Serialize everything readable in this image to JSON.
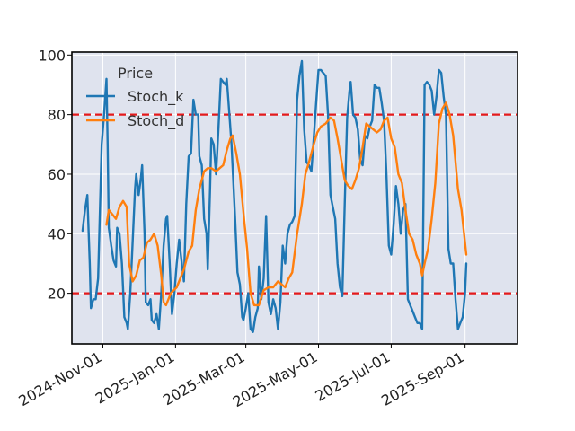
{
  "chart_data": {
    "type": "line",
    "title": "",
    "xlabel": "",
    "ylabel": "",
    "ylim": [
      3,
      101
    ],
    "xlim": [
      "2024-10-06",
      "2025-10-15"
    ],
    "grid": true,
    "legend": {
      "title": "Price",
      "placement": "top-left"
    },
    "y_ticks": [
      20,
      40,
      60,
      80,
      100
    ],
    "x_ticks": [
      {
        "date": "2024-11-01",
        "label": "2024-Nov-01"
      },
      {
        "date": "2025-01-01",
        "label": "2025-Jan-01"
      },
      {
        "date": "2025-03-01",
        "label": "2025-Mar-01"
      },
      {
        "date": "2025-05-01",
        "label": "2025-May-01"
      },
      {
        "date": "2025-07-01",
        "label": "2025-Jul-01"
      },
      {
        "date": "2025-09-01",
        "label": "2025-Sep-01"
      }
    ],
    "reference_lines": [
      {
        "y": 80,
        "color": "#e41a1c",
        "style": "dashed"
      },
      {
        "y": 20,
        "color": "#e41a1c",
        "style": "dashed"
      }
    ],
    "series": [
      {
        "name": "Stoch_k",
        "color": "#1f77b4",
        "points": [
          [
            "2024-10-15",
            41
          ],
          [
            "2024-10-17",
            48
          ],
          [
            "2024-10-19",
            53
          ],
          [
            "2024-10-21",
            30
          ],
          [
            "2024-10-22",
            15
          ],
          [
            "2024-10-24",
            18
          ],
          [
            "2024-10-26",
            18
          ],
          [
            "2024-10-28",
            25
          ],
          [
            "2024-10-31",
            70
          ],
          [
            "2024-11-02",
            80
          ],
          [
            "2024-11-04",
            92
          ],
          [
            "2024-11-05",
            70
          ],
          [
            "2024-11-06",
            42
          ],
          [
            "2024-11-08",
            36
          ],
          [
            "2024-11-10",
            31
          ],
          [
            "2024-11-12",
            29
          ],
          [
            "2024-11-13",
            42
          ],
          [
            "2024-11-15",
            40
          ],
          [
            "2024-11-17",
            30
          ],
          [
            "2024-11-19",
            12
          ],
          [
            "2024-11-21",
            10
          ],
          [
            "2024-11-22",
            8
          ],
          [
            "2024-11-24",
            20
          ],
          [
            "2024-11-26",
            37
          ],
          [
            "2024-11-28",
            55
          ],
          [
            "2024-11-29",
            60
          ],
          [
            "2024-12-01",
            53
          ],
          [
            "2024-12-03",
            59
          ],
          [
            "2024-12-04",
            63
          ],
          [
            "2024-12-06",
            40
          ],
          [
            "2024-12-07",
            17
          ],
          [
            "2024-12-09",
            16
          ],
          [
            "2024-12-11",
            18
          ],
          [
            "2024-12-12",
            11
          ],
          [
            "2024-12-14",
            10
          ],
          [
            "2024-12-16",
            13
          ],
          [
            "2024-12-18",
            8
          ],
          [
            "2024-12-20",
            20
          ],
          [
            "2024-12-22",
            36
          ],
          [
            "2024-12-24",
            45
          ],
          [
            "2024-12-25",
            46
          ],
          [
            "2024-12-27",
            31
          ],
          [
            "2024-12-29",
            13
          ],
          [
            "2024-12-31",
            20
          ],
          [
            "2025-01-02",
            30
          ],
          [
            "2025-01-04",
            38
          ],
          [
            "2025-01-06",
            31
          ],
          [
            "2025-01-08",
            24
          ],
          [
            "2025-01-10",
            50
          ],
          [
            "2025-01-12",
            66
          ],
          [
            "2025-01-14",
            67
          ],
          [
            "2025-01-16",
            85
          ],
          [
            "2025-01-18",
            80
          ],
          [
            "2025-01-20",
            80
          ],
          [
            "2025-01-21",
            66
          ],
          [
            "2025-01-23",
            63
          ],
          [
            "2025-01-25",
            45
          ],
          [
            "2025-01-27",
            40
          ],
          [
            "2025-01-28",
            28
          ],
          [
            "2025-01-30",
            55
          ],
          [
            "2025-01-31",
            72
          ],
          [
            "2025-02-02",
            70
          ],
          [
            "2025-02-04",
            60
          ],
          [
            "2025-02-06",
            75
          ],
          [
            "2025-02-08",
            92
          ],
          [
            "2025-02-10",
            91
          ],
          [
            "2025-02-12",
            90
          ],
          [
            "2025-02-13",
            92
          ],
          [
            "2025-02-15",
            81
          ],
          [
            "2025-02-17",
            70
          ],
          [
            "2025-02-20",
            45
          ],
          [
            "2025-02-22",
            27
          ],
          [
            "2025-02-24",
            23
          ],
          [
            "2025-02-26",
            12
          ],
          [
            "2025-02-27",
            11
          ],
          [
            "2025-03-01",
            15
          ],
          [
            "2025-03-03",
            20
          ],
          [
            "2025-03-05",
            8
          ],
          [
            "2025-03-07",
            7
          ],
          [
            "2025-03-09",
            12
          ],
          [
            "2025-03-11",
            15
          ],
          [
            "2025-03-12",
            29
          ],
          [
            "2025-03-14",
            18
          ],
          [
            "2025-03-16",
            25
          ],
          [
            "2025-03-18",
            46
          ],
          [
            "2025-03-20",
            17
          ],
          [
            "2025-03-22",
            13
          ],
          [
            "2025-03-24",
            18
          ],
          [
            "2025-03-26",
            15
          ],
          [
            "2025-03-28",
            8
          ],
          [
            "2025-03-30",
            17
          ],
          [
            "2025-04-01",
            36
          ],
          [
            "2025-04-03",
            30
          ],
          [
            "2025-04-05",
            40
          ],
          [
            "2025-04-07",
            43
          ],
          [
            "2025-04-09",
            44
          ],
          [
            "2025-04-11",
            46
          ],
          [
            "2025-04-13",
            85
          ],
          [
            "2025-04-15",
            93
          ],
          [
            "2025-04-17",
            98
          ],
          [
            "2025-04-19",
            75
          ],
          [
            "2025-04-21",
            64
          ],
          [
            "2025-04-23",
            63
          ],
          [
            "2025-04-25",
            61
          ],
          [
            "2025-04-27",
            72
          ],
          [
            "2025-04-29",
            84
          ],
          [
            "2025-05-01",
            95
          ],
          [
            "2025-05-03",
            95
          ],
          [
            "2025-05-05",
            94
          ],
          [
            "2025-05-07",
            93
          ],
          [
            "2025-05-09",
            80
          ],
          [
            "2025-05-11",
            53
          ],
          [
            "2025-05-13",
            49
          ],
          [
            "2025-05-15",
            45
          ],
          [
            "2025-05-17",
            30
          ],
          [
            "2025-05-19",
            22
          ],
          [
            "2025-05-21",
            19
          ],
          [
            "2025-05-23",
            50
          ],
          [
            "2025-05-25",
            79
          ],
          [
            "2025-05-27",
            88
          ],
          [
            "2025-05-28",
            91
          ],
          [
            "2025-05-30",
            80
          ],
          [
            "2025-06-01",
            79
          ],
          [
            "2025-06-03",
            75
          ],
          [
            "2025-06-05",
            65
          ],
          [
            "2025-06-07",
            63
          ],
          [
            "2025-06-09",
            73
          ],
          [
            "2025-06-11",
            72
          ],
          [
            "2025-06-13",
            76
          ],
          [
            "2025-06-15",
            78
          ],
          [
            "2025-06-17",
            90
          ],
          [
            "2025-06-19",
            89
          ],
          [
            "2025-06-21",
            89
          ],
          [
            "2025-06-23",
            84
          ],
          [
            "2025-06-25",
            78
          ],
          [
            "2025-06-27",
            60
          ],
          [
            "2025-06-29",
            36
          ],
          [
            "2025-07-01",
            33
          ],
          [
            "2025-07-03",
            43
          ],
          [
            "2025-07-05",
            56
          ],
          [
            "2025-07-07",
            50
          ],
          [
            "2025-07-09",
            40
          ],
          [
            "2025-07-11",
            48
          ],
          [
            "2025-07-13",
            50
          ],
          [
            "2025-07-15",
            18
          ],
          [
            "2025-07-17",
            16
          ],
          [
            "2025-07-19",
            14
          ],
          [
            "2025-07-21",
            12
          ],
          [
            "2025-07-23",
            10
          ],
          [
            "2025-07-25",
            10
          ],
          [
            "2025-07-27",
            8
          ],
          [
            "2025-07-29",
            90
          ],
          [
            "2025-07-31",
            91
          ],
          [
            "2025-08-02",
            90
          ],
          [
            "2025-08-04",
            88
          ],
          [
            "2025-08-06",
            80
          ],
          [
            "2025-08-08",
            86
          ],
          [
            "2025-08-10",
            95
          ],
          [
            "2025-08-12",
            94
          ],
          [
            "2025-08-14",
            86
          ],
          [
            "2025-08-16",
            80
          ],
          [
            "2025-08-18",
            35
          ],
          [
            "2025-08-20",
            30
          ],
          [
            "2025-08-22",
            30
          ],
          [
            "2025-08-24",
            18
          ],
          [
            "2025-08-26",
            8
          ],
          [
            "2025-08-28",
            10
          ],
          [
            "2025-08-30",
            12
          ],
          [
            "2025-09-01",
            20
          ],
          [
            "2025-09-02",
            30
          ]
        ]
      },
      {
        "name": "Stoch_d",
        "color": "#ff7f0e",
        "points": [
          [
            "2024-11-04",
            43
          ],
          [
            "2024-11-06",
            48
          ],
          [
            "2024-11-08",
            47
          ],
          [
            "2024-11-12",
            45
          ],
          [
            "2024-11-15",
            49
          ],
          [
            "2024-11-18",
            51
          ],
          [
            "2024-11-21",
            49
          ],
          [
            "2024-11-23",
            30
          ],
          [
            "2024-11-26",
            24
          ],
          [
            "2024-11-29",
            26
          ],
          [
            "2024-12-02",
            31
          ],
          [
            "2024-12-05",
            32
          ],
          [
            "2024-12-08",
            37
          ],
          [
            "2024-12-11",
            38
          ],
          [
            "2024-12-14",
            40
          ],
          [
            "2024-12-17",
            36
          ],
          [
            "2024-12-20",
            26
          ],
          [
            "2024-12-22",
            17
          ],
          [
            "2024-12-24",
            16
          ],
          [
            "2024-12-28",
            20
          ],
          [
            "2025-01-02",
            22
          ],
          [
            "2025-01-05",
            25
          ],
          [
            "2025-01-08",
            28
          ],
          [
            "2025-01-12",
            34
          ],
          [
            "2025-01-15",
            36
          ],
          [
            "2025-01-18",
            48
          ],
          [
            "2025-01-21",
            55
          ],
          [
            "2025-01-25",
            61
          ],
          [
            "2025-01-28",
            62
          ],
          [
            "2025-01-31",
            62
          ],
          [
            "2025-02-04",
            61
          ],
          [
            "2025-02-07",
            62
          ],
          [
            "2025-02-10",
            63
          ],
          [
            "2025-02-13",
            68
          ],
          [
            "2025-02-16",
            72
          ],
          [
            "2025-02-18",
            73
          ],
          [
            "2025-02-21",
            67
          ],
          [
            "2025-02-24",
            60
          ],
          [
            "2025-02-27",
            47
          ],
          [
            "2025-03-02",
            35
          ],
          [
            "2025-03-05",
            20
          ],
          [
            "2025-03-08",
            16
          ],
          [
            "2025-03-12",
            16
          ],
          [
            "2025-03-16",
            21
          ],
          [
            "2025-03-20",
            22
          ],
          [
            "2025-03-24",
            22
          ],
          [
            "2025-03-28",
            24
          ],
          [
            "2025-03-31",
            23
          ],
          [
            "2025-04-03",
            22
          ],
          [
            "2025-04-06",
            25
          ],
          [
            "2025-04-09",
            27
          ],
          [
            "2025-04-13",
            40
          ],
          [
            "2025-04-17",
            50
          ],
          [
            "2025-04-20",
            60
          ],
          [
            "2025-04-23",
            64
          ],
          [
            "2025-04-27",
            70
          ],
          [
            "2025-04-30",
            74
          ],
          [
            "2025-05-03",
            76
          ],
          [
            "2025-05-07",
            77
          ],
          [
            "2025-05-11",
            79
          ],
          [
            "2025-05-14",
            78
          ],
          [
            "2025-05-17",
            72
          ],
          [
            "2025-05-20",
            65
          ],
          [
            "2025-05-23",
            58
          ],
          [
            "2025-05-26",
            56
          ],
          [
            "2025-05-29",
            55
          ],
          [
            "2025-06-01",
            58
          ],
          [
            "2025-06-04",
            62
          ],
          [
            "2025-06-07",
            69
          ],
          [
            "2025-06-10",
            77
          ],
          [
            "2025-06-13",
            76
          ],
          [
            "2025-06-16",
            75
          ],
          [
            "2025-06-19",
            74
          ],
          [
            "2025-06-22",
            75
          ],
          [
            "2025-06-25",
            78
          ],
          [
            "2025-06-28",
            79
          ],
          [
            "2025-07-01",
            72
          ],
          [
            "2025-07-04",
            69
          ],
          [
            "2025-07-07",
            60
          ],
          [
            "2025-07-10",
            57
          ],
          [
            "2025-07-13",
            48
          ],
          [
            "2025-07-16",
            40
          ],
          [
            "2025-07-19",
            38
          ],
          [
            "2025-07-22",
            33
          ],
          [
            "2025-07-25",
            30
          ],
          [
            "2025-07-27",
            26
          ],
          [
            "2025-07-29",
            30
          ],
          [
            "2025-08-01",
            35
          ],
          [
            "2025-08-04",
            45
          ],
          [
            "2025-08-07",
            57
          ],
          [
            "2025-08-10",
            77
          ],
          [
            "2025-08-13",
            82
          ],
          [
            "2025-08-16",
            84
          ],
          [
            "2025-08-19",
            80
          ],
          [
            "2025-08-22",
            73
          ],
          [
            "2025-08-26",
            55
          ],
          [
            "2025-08-29",
            48
          ],
          [
            "2025-09-02",
            33
          ]
        ]
      }
    ]
  }
}
